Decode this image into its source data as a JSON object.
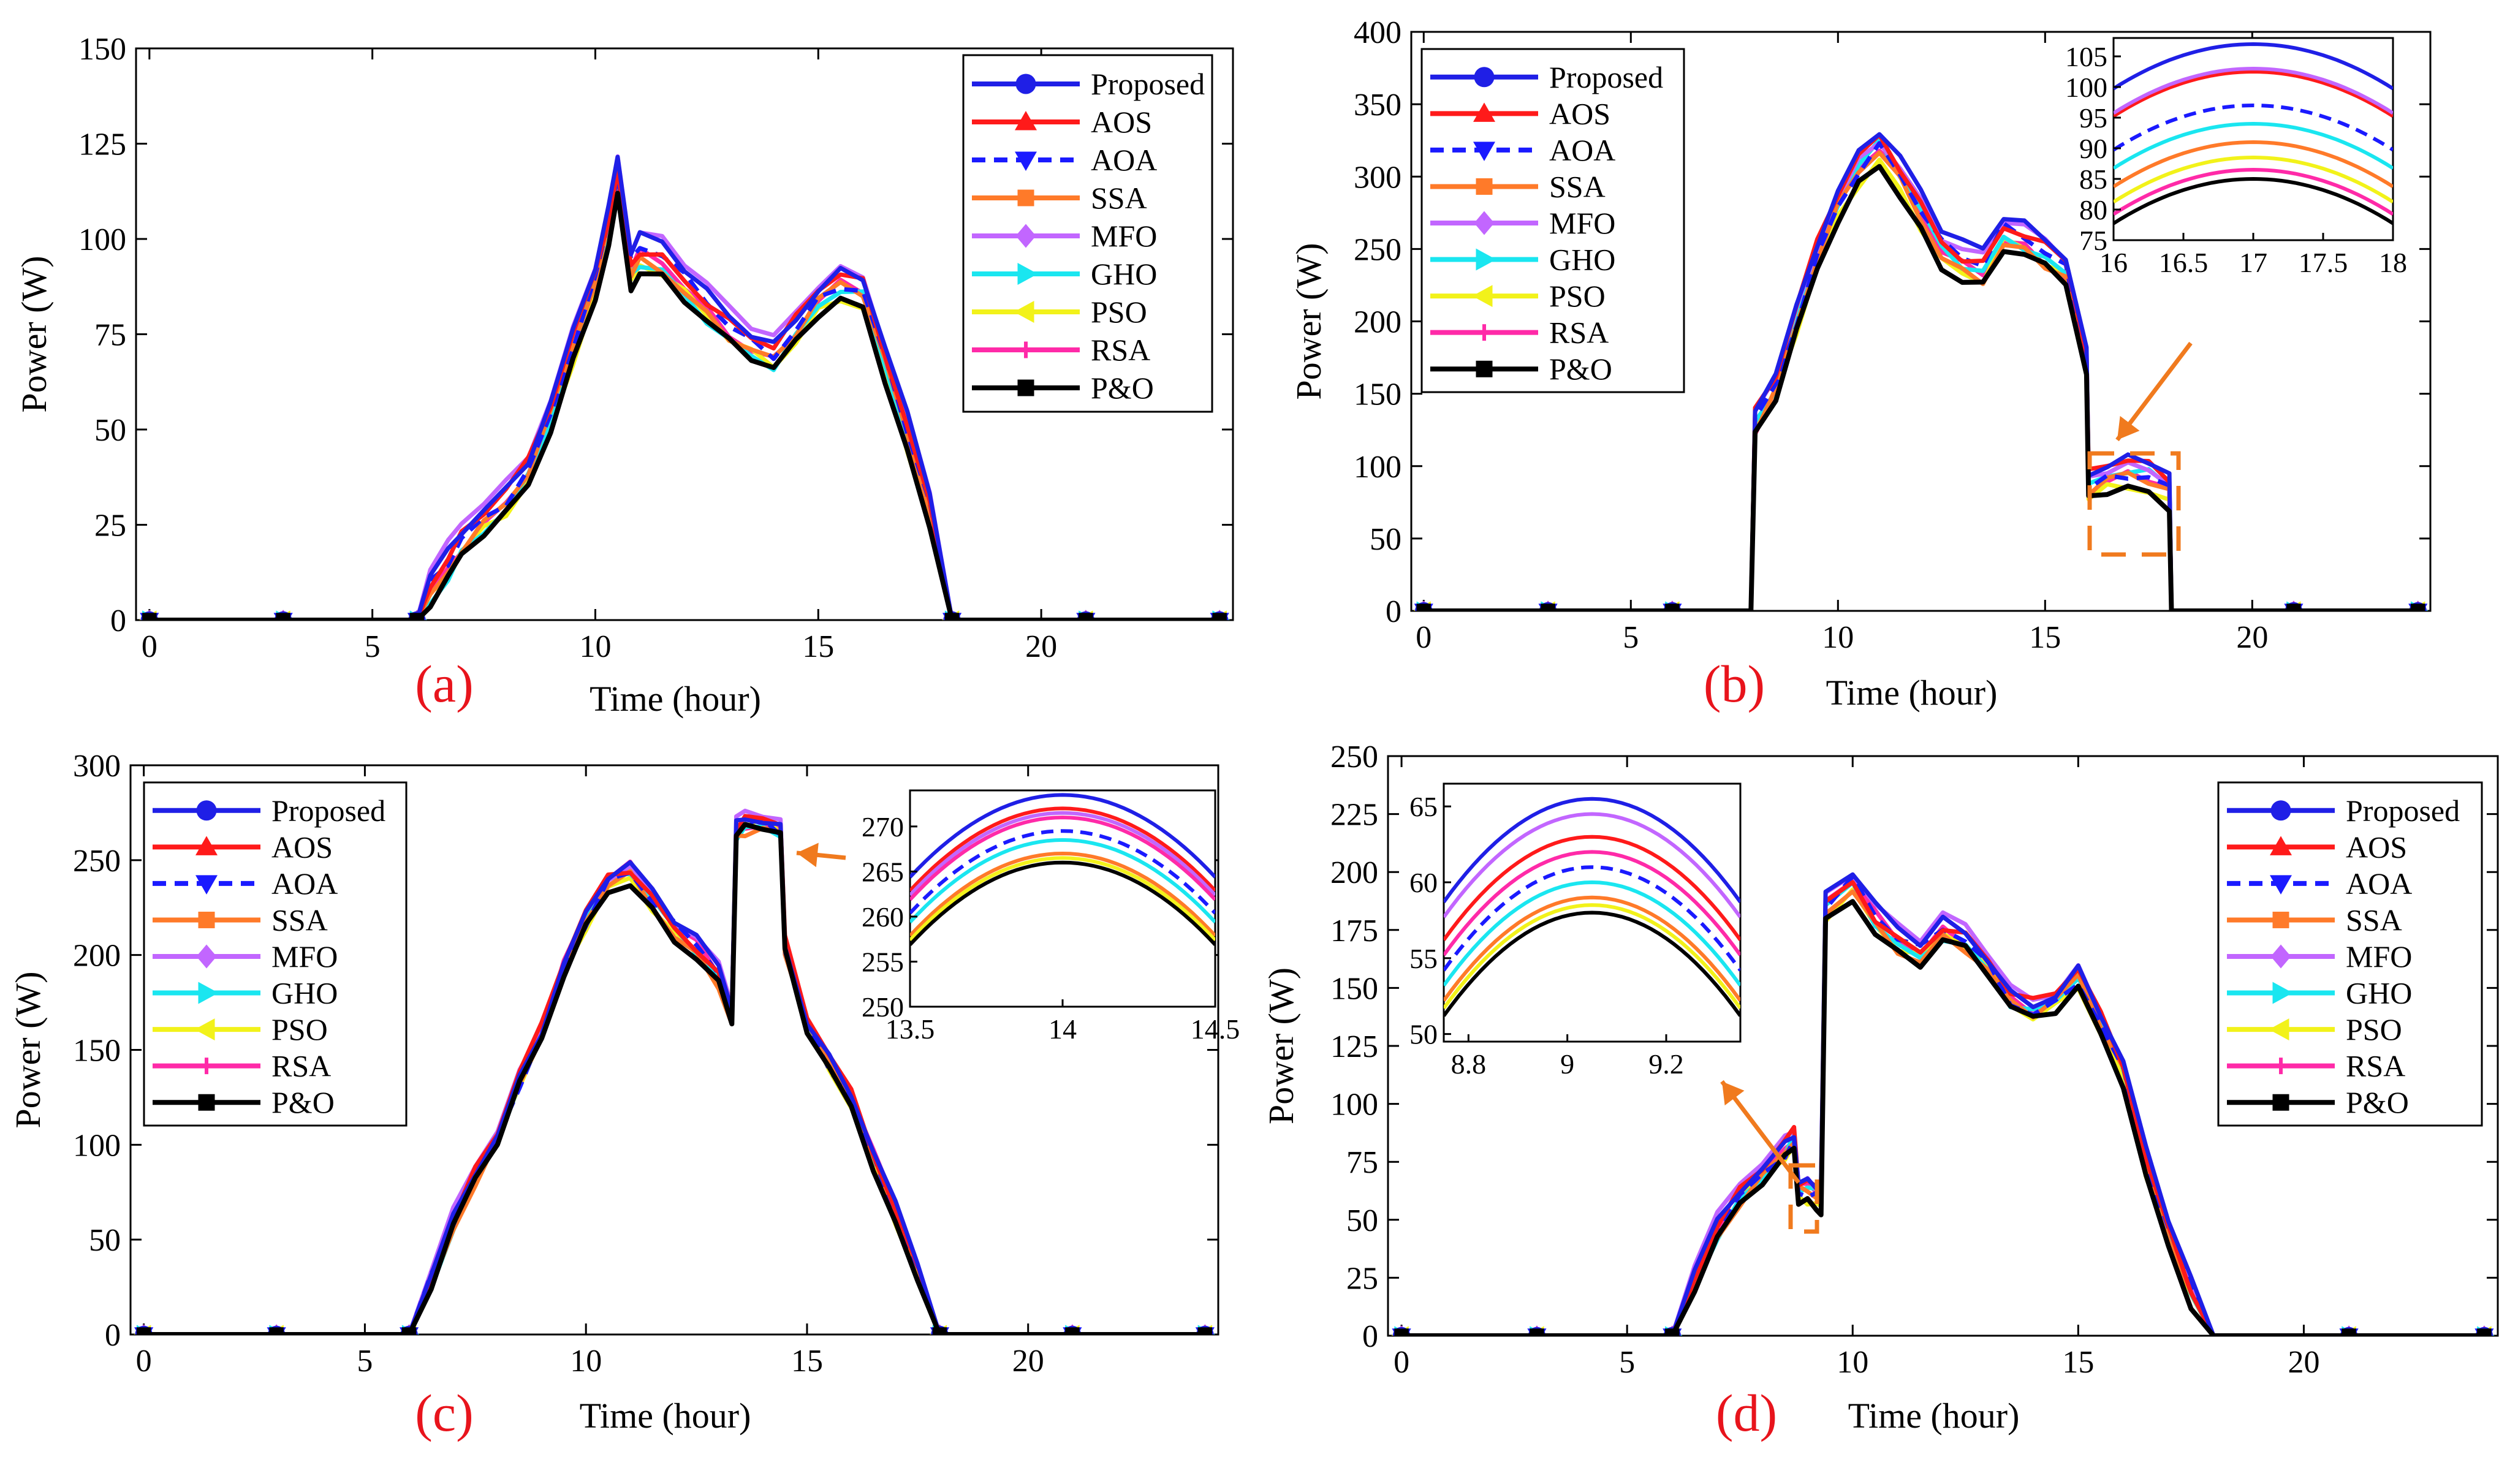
{
  "colors": {
    "Proposed": "#1f1fe6",
    "AOS": "#ff1a1a",
    "AOA": "#1a1aff",
    "SSA": "#ff7a29",
    "MFO": "#c266ff",
    "GHO": "#1ae6f0",
    "PSO": "#f2f21a",
    "RSA": "#ff2aa8",
    "P&O": "#000000",
    "arrow": "#f07a1e",
    "label": "#e8141c"
  },
  "series_names": [
    "Proposed",
    "AOS",
    "AOA",
    "SSA",
    "MFO",
    "GHO",
    "PSO",
    "RSA",
    "P&O"
  ],
  "chart_data": [
    {
      "id": "a",
      "panel_label": "(a)",
      "type": "line",
      "xlabel": "Time (hour)",
      "ylabel": "Power (W)",
      "xlim": [
        -0.3,
        24.3
      ],
      "ylim": [
        0,
        150
      ],
      "xticks": [
        0,
        5,
        10,
        15,
        20
      ],
      "yticks": [
        0,
        25,
        50,
        75,
        100,
        125,
        150
      ],
      "legend_position": "top-right",
      "x": [
        0,
        1,
        2,
        3,
        4,
        5,
        6,
        6.3,
        6.7,
        7,
        7.5,
        8,
        8.5,
        9,
        9.5,
        10,
        10.3,
        10.5,
        10.8,
        11,
        11.5,
        12,
        12.5,
        13,
        13.5,
        14,
        14.5,
        15,
        15.5,
        16,
        16.5,
        17,
        17.5,
        18,
        19,
        20,
        21,
        22,
        23,
        24
      ],
      "y": [
        0,
        0,
        0,
        0,
        0,
        0,
        0,
        4,
        10,
        16,
        22,
        27,
        35,
        50,
        68,
        85,
        100,
        112,
        88,
        92,
        90,
        84,
        78,
        72,
        68,
        65,
        72,
        80,
        84,
        82,
        64,
        45,
        25,
        0,
        0,
        0,
        0,
        0,
        0,
        0
      ],
      "offsets": [
        8,
        6,
        5,
        3,
        9,
        2,
        1,
        4,
        0
      ],
      "markers_x": [
        0,
        3,
        6,
        18,
        21,
        24
      ]
    },
    {
      "id": "b",
      "panel_label": "(b)",
      "type": "line",
      "xlabel": "Time (hour)",
      "ylabel": "Power (W)",
      "xlim": [
        -0.3,
        24.3
      ],
      "ylim": [
        0,
        400
      ],
      "xticks": [
        0,
        5,
        10,
        15,
        20
      ],
      "yticks": [
        0,
        50,
        100,
        150,
        200,
        250,
        300,
        350,
        400
      ],
      "legend_position": "top-left",
      "x": [
        0,
        1,
        2,
        3,
        4,
        5,
        6,
        7,
        7.9,
        8,
        8.5,
        9,
        9.5,
        10,
        10.5,
        11,
        11.5,
        12,
        12.5,
        13,
        13.5,
        14,
        14.5,
        15,
        15.5,
        16,
        16.05,
        16.5,
        17,
        17.5,
        18,
        18.05,
        19,
        20,
        21,
        22,
        23,
        24
      ],
      "y": [
        0,
        0,
        0,
        0,
        0,
        0,
        0,
        0,
        0,
        120,
        145,
        190,
        235,
        270,
        295,
        310,
        290,
        265,
        240,
        230,
        225,
        250,
        245,
        235,
        225,
        160,
        75,
        82,
        85,
        82,
        74,
        0,
        0,
        0,
        0,
        0,
        0,
        0
      ],
      "offsets": [
        22,
        17,
        12,
        6,
        18,
        10,
        3,
        8,
        0
      ],
      "markers_x": [
        0,
        3,
        6,
        21,
        24
      ],
      "inset": {
        "xlim": [
          16,
          18
        ],
        "ylim": [
          75,
          108
        ],
        "xticks": [
          16,
          16.5,
          17,
          17.5,
          18
        ],
        "yticks": [
          75,
          80,
          85,
          90,
          95,
          100,
          105
        ],
        "peaks": [
          107,
          102.5,
          97,
          91,
          103,
          94,
          88.5,
          86.5,
          85
        ],
        "curvature": 22
      }
    },
    {
      "id": "c",
      "panel_label": "(c)",
      "type": "line",
      "xlabel": "Time (hour)",
      "ylabel": "Power (W)",
      "xlim": [
        -0.3,
        24.3
      ],
      "ylim": [
        0,
        300
      ],
      "xticks": [
        0,
        5,
        10,
        15,
        20
      ],
      "yticks": [
        0,
        50,
        100,
        150,
        200,
        250,
        300
      ],
      "legend_position": "top-left",
      "x": [
        0,
        1,
        2,
        3,
        4,
        5,
        6,
        6.5,
        7,
        7.5,
        8,
        8.5,
        9,
        9.5,
        10,
        10.5,
        11,
        11.5,
        12,
        12.5,
        13,
        13.3,
        13.4,
        13.6,
        14,
        14.4,
        14.5,
        15,
        15.5,
        16,
        16.5,
        17,
        17.5,
        18,
        19,
        20,
        21,
        22,
        23,
        24
      ],
      "y": [
        0,
        0,
        0,
        0,
        0,
        0,
        0,
        25,
        55,
        80,
        100,
        130,
        155,
        190,
        215,
        235,
        240,
        225,
        210,
        200,
        185,
        165,
        262,
        265,
        266,
        262,
        200,
        160,
        140,
        120,
        90,
        60,
        30,
        0,
        0,
        0,
        0,
        0,
        0,
        0
      ],
      "offsets": [
        7,
        6,
        4,
        1,
        8,
        3,
        2,
        5,
        0
      ],
      "markers_x": [
        0,
        3,
        6,
        18,
        21,
        24
      ],
      "inset": {
        "xlim": [
          13.5,
          14.5
        ],
        "ylim": [
          250,
          274
        ],
        "xticks": [
          13.5,
          14,
          14.5
        ],
        "yticks": [
          250,
          255,
          260,
          265,
          270
        ],
        "peaks": [
          273.5,
          272,
          269.5,
          267,
          271.5,
          268.5,
          266.5,
          271,
          266
        ],
        "curvature": 38
      }
    },
    {
      "id": "d",
      "panel_label": "(d)",
      "type": "line",
      "xlabel": "Time (hour)",
      "ylabel": "Power (W)",
      "xlim": [
        -0.3,
        24.3
      ],
      "ylim": [
        0,
        250
      ],
      "xticks": [
        0,
        5,
        10,
        15,
        20
      ],
      "yticks": [
        0,
        25,
        50,
        75,
        100,
        125,
        150,
        175,
        200,
        225,
        250
      ],
      "legend_position": "top-right",
      "x": [
        0,
        1,
        2,
        3,
        4,
        5,
        6,
        6.5,
        7,
        7.5,
        8,
        8.5,
        8.7,
        8.8,
        9,
        9.2,
        9.3,
        9.4,
        10,
        10.5,
        11,
        11.5,
        12,
        12.5,
        13,
        13.5,
        14,
        14.5,
        15,
        15.5,
        16,
        16.5,
        17,
        17.5,
        18,
        19,
        20,
        21,
        22,
        23,
        24
      ],
      "y": [
        0,
        0,
        0,
        0,
        0,
        0,
        0,
        20,
        40,
        55,
        65,
        75,
        80,
        58,
        58,
        56,
        55,
        180,
        190,
        175,
        165,
        160,
        170,
        165,
        155,
        140,
        135,
        140,
        150,
        130,
        110,
        70,
        40,
        15,
        0,
        0,
        0,
        0,
        0,
        0,
        0
      ],
      "offsets": [
        9,
        7,
        5,
        3,
        10,
        4,
        2,
        6,
        0
      ],
      "markers_x": [
        0,
        3,
        6,
        21,
        24
      ],
      "inset": {
        "xlim": [
          8.75,
          9.35
        ],
        "ylim": [
          49.5,
          66.5
        ],
        "xticks": [
          8.8,
          9,
          9.2
        ],
        "yticks": [
          50,
          55,
          60,
          65
        ],
        "peaks": [
          65.5,
          63,
          61,
          59,
          64.5,
          60,
          58.5,
          62,
          58
        ],
        "curvature": 40
      }
    }
  ]
}
